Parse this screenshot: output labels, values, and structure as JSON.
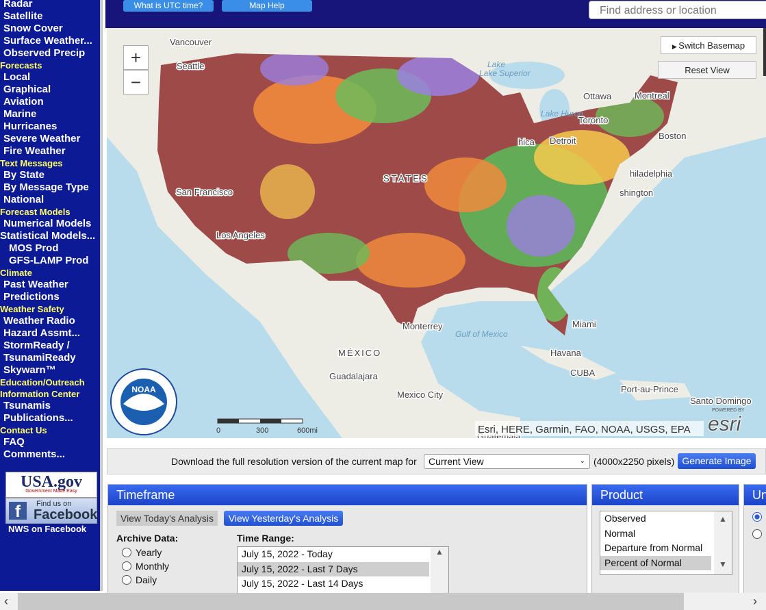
{
  "nav": {
    "top_items": [
      "Radar",
      "Satellite",
      "Snow Cover",
      "Surface Weather...",
      "Observed Precip"
    ],
    "sections": [
      {
        "title": "Forecasts",
        "items": [
          "Local",
          "Graphical",
          "Aviation",
          "Marine",
          "Hurricanes",
          "Severe Weather",
          "Fire Weather"
        ]
      },
      {
        "title": "Text Messages",
        "items": [
          "By State",
          "By Message Type",
          "National"
        ]
      },
      {
        "title": "Forecast Models",
        "items": [
          "Numerical Models",
          "Statistical Models...",
          "MOS Prod",
          "GFS-LAMP Prod"
        ]
      },
      {
        "title": "Climate",
        "items": [
          "Past Weather",
          "Predictions"
        ]
      },
      {
        "title": "Weather Safety",
        "items": [
          "Weather Radio",
          "Hazard Assmt...",
          "StormReady / TsunamiReady",
          "Skywarn™"
        ]
      },
      {
        "title": "Education/Outreach",
        "items": []
      },
      {
        "title": "Information Center",
        "items": [
          "Tsunamis",
          "Publications..."
        ]
      },
      {
        "title": "Contact Us",
        "items": [
          "FAQ",
          "Comments..."
        ]
      }
    ],
    "usagov": "USA.gov",
    "usagov_tag": "Government Made Easy",
    "fb_top": "Find us on",
    "fb": "Facebook",
    "fb_link": "NWS on Facebook"
  },
  "header": {
    "utc": "What is UTC time?",
    "help": "Map Help",
    "search": "Find address or location"
  },
  "map": {
    "zoom_in": "+",
    "zoom_out": "−",
    "basemap": "Switch Basemap",
    "reset": "Reset View",
    "labels": [
      "Vancouver",
      "Seattle",
      "Lake Superior",
      "Ottawa",
      "Montreal",
      "Lake Huron",
      "Toronto",
      "Boston",
      "Detroit",
      "hica",
      "hiladelphia",
      "shington",
      "STATES",
      "San Francisco",
      "Los Angeles",
      "Monterrey",
      "Gulf of Mexico",
      "Miami",
      "Havana",
      "MÉXICO",
      "Guadalajara",
      "CUBA",
      "Mexico City",
      "Port-au-Prince",
      "Santo Domingo",
      "Guatemala"
    ],
    "scale": [
      "0",
      "300",
      "600mi"
    ],
    "noaa": "NOAA",
    "attribution": "Esri, HERE, Garmin, FAO, NOAA, USGS, EPA",
    "powered": "POWERED BY",
    "esri": "esri"
  },
  "download": {
    "text": "Download the full resolution version of the current map for",
    "select": "Current View",
    "size": "(4000x2250 pixels)",
    "button": "Generate Image"
  },
  "timeframe": {
    "title": "Timeframe",
    "today": "View Today's Analysis",
    "yesterday": "View Yesterday's Analysis",
    "archive": "Archive Data:",
    "options": [
      "Yearly",
      "Monthly",
      "Daily"
    ],
    "range_label": "Time Range:",
    "ranges": [
      "July 15, 2022 - Today",
      "July 15, 2022 - Last 7 Days",
      "July 15, 2022 - Last 14 Days"
    ]
  },
  "product": {
    "title": "Product",
    "items": [
      "Observed",
      "Normal",
      "Departure from Normal",
      "Percent of Normal"
    ]
  },
  "units": {
    "title": "Units"
  }
}
